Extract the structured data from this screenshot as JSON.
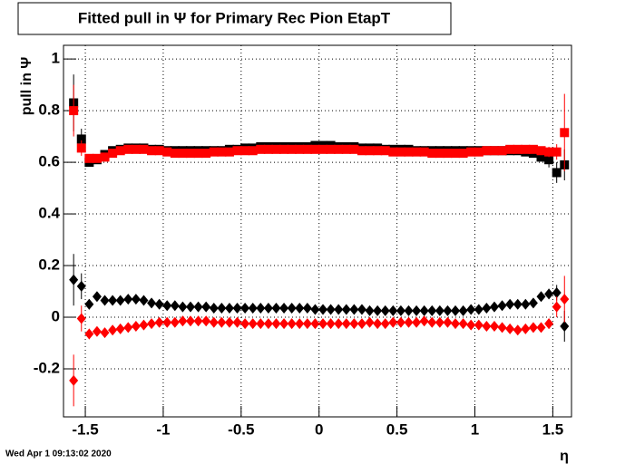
{
  "chart_data": {
    "type": "scatter",
    "title": "Fitted pull in  Ψ  for Primary Rec Pion EtapT",
    "y_label": "pull in  Ψ",
    "x_label": "η",
    "timestamp": "Wed Apr  1 09:13:02 2020",
    "xlim": [
      -1.64,
      1.62
    ],
    "ylim": [
      -0.386,
      1.053
    ],
    "xticks": [
      -1.5,
      -1,
      -0.5,
      0,
      0.5,
      1,
      1.5
    ],
    "yticks": [
      -0.2,
      0,
      0.2,
      0.4,
      0.6,
      0.8,
      1
    ],
    "grid": true,
    "x": [
      -1.575,
      -1.525,
      -1.475,
      -1.425,
      -1.375,
      -1.325,
      -1.275,
      -1.225,
      -1.175,
      -1.125,
      -1.075,
      -1.025,
      -0.975,
      -0.925,
      -0.875,
      -0.825,
      -0.775,
      -0.725,
      -0.675,
      -0.625,
      -0.575,
      -0.525,
      -0.475,
      -0.425,
      -0.375,
      -0.325,
      -0.275,
      -0.225,
      -0.175,
      -0.125,
      -0.075,
      -0.025,
      0.025,
      0.075,
      0.125,
      0.175,
      0.225,
      0.275,
      0.325,
      0.375,
      0.425,
      0.475,
      0.525,
      0.575,
      0.625,
      0.675,
      0.725,
      0.775,
      0.825,
      0.875,
      0.925,
      0.975,
      1.025,
      1.075,
      1.125,
      1.175,
      1.225,
      1.275,
      1.325,
      1.375,
      1.425,
      1.475,
      1.525,
      1.575
    ],
    "series": [
      {
        "color": "#000000",
        "marker": "square",
        "values": [
          0.83,
          0.69,
          0.6,
          0.61,
          0.63,
          0.645,
          0.65,
          0.655,
          0.655,
          0.655,
          0.65,
          0.65,
          0.645,
          0.645,
          0.645,
          0.645,
          0.645,
          0.645,
          0.645,
          0.645,
          0.65,
          0.65,
          0.655,
          0.655,
          0.66,
          0.66,
          0.66,
          0.66,
          0.66,
          0.66,
          0.66,
          0.665,
          0.665,
          0.665,
          0.66,
          0.66,
          0.66,
          0.655,
          0.655,
          0.655,
          0.65,
          0.65,
          0.65,
          0.65,
          0.645,
          0.645,
          0.645,
          0.645,
          0.645,
          0.645,
          0.645,
          0.645,
          0.645,
          0.645,
          0.645,
          0.645,
          0.645,
          0.645,
          0.64,
          0.635,
          0.62,
          0.61,
          0.56,
          0.59
        ],
        "errors": [
          0.11,
          0.04,
          0.015,
          0.01,
          0.01,
          0.01,
          0.01,
          0.01,
          0.01,
          0.01,
          0.01,
          0.01,
          0.01,
          0.01,
          0.01,
          0.01,
          0.01,
          0.01,
          0.01,
          0.01,
          0.01,
          0.01,
          0.01,
          0.01,
          0.01,
          0.01,
          0.01,
          0.01,
          0.01,
          0.01,
          0.01,
          0.01,
          0.01,
          0.01,
          0.01,
          0.01,
          0.01,
          0.01,
          0.01,
          0.01,
          0.01,
          0.01,
          0.01,
          0.01,
          0.01,
          0.01,
          0.01,
          0.01,
          0.01,
          0.01,
          0.01,
          0.01,
          0.01,
          0.01,
          0.01,
          0.01,
          0.01,
          0.01,
          0.01,
          0.01,
          0.01,
          0.03,
          0.04,
          0.06
        ]
      },
      {
        "color": "#ff0000",
        "marker": "square",
        "values": [
          0.8,
          0.655,
          0.615,
          0.615,
          0.62,
          0.635,
          0.645,
          0.65,
          0.65,
          0.65,
          0.645,
          0.645,
          0.64,
          0.635,
          0.635,
          0.635,
          0.635,
          0.635,
          0.64,
          0.64,
          0.64,
          0.645,
          0.645,
          0.645,
          0.65,
          0.65,
          0.65,
          0.65,
          0.65,
          0.65,
          0.65,
          0.65,
          0.65,
          0.65,
          0.65,
          0.65,
          0.65,
          0.645,
          0.645,
          0.645,
          0.645,
          0.64,
          0.64,
          0.64,
          0.64,
          0.64,
          0.635,
          0.635,
          0.635,
          0.635,
          0.635,
          0.64,
          0.64,
          0.645,
          0.645,
          0.645,
          0.65,
          0.65,
          0.65,
          0.65,
          0.645,
          0.64,
          0.64,
          0.715
        ],
        "errors": [
          0.1,
          0.03,
          0.015,
          0.01,
          0.01,
          0.01,
          0.01,
          0.01,
          0.01,
          0.01,
          0.01,
          0.01,
          0.01,
          0.01,
          0.01,
          0.01,
          0.01,
          0.01,
          0.01,
          0.01,
          0.01,
          0.01,
          0.01,
          0.01,
          0.01,
          0.01,
          0.01,
          0.01,
          0.01,
          0.01,
          0.01,
          0.01,
          0.01,
          0.01,
          0.01,
          0.01,
          0.01,
          0.01,
          0.01,
          0.01,
          0.01,
          0.01,
          0.01,
          0.01,
          0.01,
          0.01,
          0.01,
          0.01,
          0.01,
          0.01,
          0.01,
          0.01,
          0.01,
          0.01,
          0.01,
          0.01,
          0.01,
          0.01,
          0.01,
          0.01,
          0.01,
          0.02,
          0.03,
          0.15
        ]
      },
      {
        "color": "#000000",
        "marker": "diamond",
        "values": [
          0.145,
          0.12,
          0.05,
          0.08,
          0.065,
          0.065,
          0.065,
          0.07,
          0.07,
          0.065,
          0.055,
          0.05,
          0.045,
          0.045,
          0.04,
          0.04,
          0.04,
          0.04,
          0.035,
          0.035,
          0.035,
          0.035,
          0.035,
          0.035,
          0.035,
          0.035,
          0.035,
          0.035,
          0.035,
          0.035,
          0.035,
          0.03,
          0.03,
          0.03,
          0.03,
          0.03,
          0.03,
          0.03,
          0.025,
          0.025,
          0.025,
          0.025,
          0.025,
          0.025,
          0.025,
          0.025,
          0.025,
          0.025,
          0.025,
          0.025,
          0.025,
          0.03,
          0.03,
          0.035,
          0.04,
          0.045,
          0.05,
          0.05,
          0.05,
          0.055,
          0.08,
          0.09,
          0.095,
          -0.035
        ],
        "errors": [
          0.1,
          0.05,
          0.02,
          0.01,
          0.01,
          0.01,
          0.01,
          0.01,
          0.01,
          0.01,
          0.01,
          0.01,
          0.01,
          0.01,
          0.01,
          0.01,
          0.01,
          0.01,
          0.01,
          0.01,
          0.01,
          0.01,
          0.01,
          0.01,
          0.01,
          0.01,
          0.01,
          0.01,
          0.01,
          0.01,
          0.01,
          0.01,
          0.01,
          0.01,
          0.01,
          0.01,
          0.01,
          0.01,
          0.01,
          0.01,
          0.01,
          0.01,
          0.01,
          0.01,
          0.01,
          0.01,
          0.01,
          0.01,
          0.01,
          0.01,
          0.01,
          0.01,
          0.01,
          0.01,
          0.01,
          0.01,
          0.01,
          0.01,
          0.01,
          0.01,
          0.01,
          0.02,
          0.03,
          0.06
        ]
      },
      {
        "color": "#ff0000",
        "marker": "diamond",
        "values": [
          -0.245,
          -0.005,
          -0.065,
          -0.055,
          -0.06,
          -0.05,
          -0.045,
          -0.04,
          -0.035,
          -0.03,
          -0.025,
          -0.02,
          -0.02,
          -0.02,
          -0.015,
          -0.015,
          -0.015,
          -0.015,
          -0.02,
          -0.02,
          -0.02,
          -0.02,
          -0.025,
          -0.025,
          -0.025,
          -0.025,
          -0.025,
          -0.025,
          -0.025,
          -0.025,
          -0.025,
          -0.025,
          -0.025,
          -0.025,
          -0.025,
          -0.025,
          -0.025,
          -0.025,
          -0.02,
          -0.025,
          -0.025,
          -0.02,
          -0.02,
          -0.02,
          -0.02,
          -0.015,
          -0.02,
          -0.02,
          -0.02,
          -0.025,
          -0.025,
          -0.03,
          -0.03,
          -0.035,
          -0.035,
          -0.04,
          -0.045,
          -0.05,
          -0.045,
          -0.04,
          -0.04,
          -0.025,
          0.04,
          0.07
        ],
        "errors": [
          0.1,
          0.05,
          0.02,
          0.01,
          0.01,
          0.01,
          0.01,
          0.01,
          0.01,
          0.01,
          0.01,
          0.01,
          0.01,
          0.01,
          0.01,
          0.01,
          0.01,
          0.01,
          0.01,
          0.01,
          0.01,
          0.01,
          0.01,
          0.01,
          0.01,
          0.01,
          0.01,
          0.01,
          0.01,
          0.01,
          0.01,
          0.01,
          0.01,
          0.01,
          0.01,
          0.01,
          0.01,
          0.01,
          0.01,
          0.01,
          0.01,
          0.01,
          0.01,
          0.01,
          0.01,
          0.01,
          0.01,
          0.01,
          0.01,
          0.01,
          0.01,
          0.01,
          0.01,
          0.01,
          0.01,
          0.01,
          0.01,
          0.01,
          0.01,
          0.01,
          0.01,
          0.02,
          0.04,
          0.09
        ]
      }
    ]
  }
}
